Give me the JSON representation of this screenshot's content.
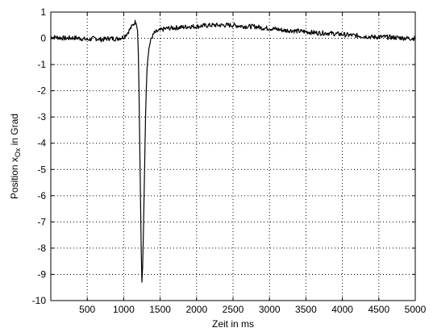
{
  "chart_data": {
    "type": "line",
    "title": "",
    "xlabel": "Zeit in ms",
    "ylabel": {
      "prefix": "Position x",
      "subscript": "Ox",
      "suffix": " in Grad"
    },
    "xlim": [
      0,
      5000
    ],
    "ylim": [
      -10,
      1
    ],
    "xticks": [
      500,
      1000,
      1500,
      2000,
      2500,
      3000,
      3500,
      4000,
      4500,
      5000
    ],
    "xtick_labels": [
      "500",
      "1000",
      "1500",
      "2000",
      "2500",
      "3000",
      "3500",
      "4000",
      "4500",
      "5000"
    ],
    "yticks": [
      1,
      0,
      -1,
      -2,
      -3,
      -4,
      -5,
      -6,
      -7,
      -8,
      -9,
      -10
    ],
    "ytick_labels": [
      "1",
      "0",
      "-1",
      "-2",
      "-3",
      "-4",
      "-5",
      "-6",
      "-7",
      "-8",
      "-9",
      "-10"
    ],
    "grid": true,
    "line_color": "#000000",
    "series": [
      {
        "x": [
          0,
          100,
          200,
          300,
          400,
          500,
          600,
          700,
          800,
          900,
          1000,
          1050,
          1100,
          1150,
          1170,
          1190,
          1200,
          1210,
          1220,
          1230,
          1240,
          1250,
          1260,
          1270,
          1280,
          1290,
          1300,
          1310,
          1320,
          1340,
          1360,
          1380,
          1400,
          1420,
          1450,
          1500,
          1550,
          1600,
          1700,
          1800,
          1900,
          2000,
          2100,
          2200,
          2300,
          2400,
          2500,
          2600,
          2700,
          2800,
          2900,
          3000,
          3100,
          3200,
          3300,
          3400,
          3500,
          3600,
          3700,
          3800,
          3900,
          4000,
          4100,
          4200,
          4300,
          4400,
          4500,
          4600,
          4700,
          4800,
          4900,
          5000
        ],
        "y": [
          0.05,
          0.03,
          0.0,
          0.02,
          0.0,
          -0.05,
          0.0,
          -0.05,
          0.0,
          -0.02,
          0.05,
          0.2,
          0.4,
          0.6,
          0.65,
          0.3,
          -0.5,
          -2.0,
          -4.0,
          -6.0,
          -8.0,
          -9.3,
          -8.7,
          -7.5,
          -6.0,
          -4.5,
          -3.0,
          -2.0,
          -1.2,
          -0.5,
          -0.2,
          0.0,
          0.1,
          0.2,
          0.25,
          0.3,
          0.35,
          0.38,
          0.4,
          0.42,
          0.45,
          0.45,
          0.48,
          0.5,
          0.5,
          0.5,
          0.5,
          0.47,
          0.45,
          0.45,
          0.4,
          0.38,
          0.35,
          0.3,
          0.3,
          0.27,
          0.25,
          0.22,
          0.2,
          0.2,
          0.17,
          0.15,
          0.12,
          0.1,
          0.08,
          0.05,
          0.05,
          0.05,
          0.03,
          0.02,
          0.0,
          0.0
        ]
      }
    ]
  }
}
